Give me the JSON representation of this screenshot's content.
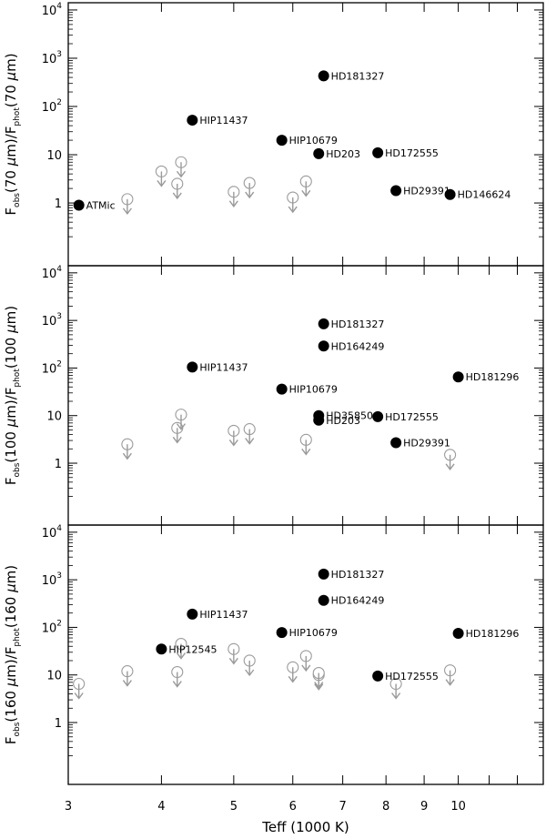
{
  "chart_data": [
    {
      "type": "scatter",
      "ylabel": {
        "pre": "F",
        "obs": "obs",
        "mid1": "(70 ",
        "mu": "μ",
        "mid2": "m)/F",
        "phot": "phot",
        "post": "(70 ",
        "mu2": "μ",
        "end": "m)"
      },
      "xlim": [
        3.0,
        13.0
      ],
      "ylim_log10": [
        -1.3,
        4.15
      ],
      "detections": [
        {
          "x": 3.1,
          "y": 0.9,
          "label": "ATMic"
        },
        {
          "x": 4.4,
          "y": 52,
          "label": "HIP11437"
        },
        {
          "x": 5.8,
          "y": 20,
          "label": "HIP10679"
        },
        {
          "x": 6.5,
          "y": 10.5,
          "label": "HD203"
        },
        {
          "x": 6.6,
          "y": 430,
          "label": "HD181327"
        },
        {
          "x": 7.8,
          "y": 11,
          "label": "HD172555"
        },
        {
          "x": 8.25,
          "y": 1.8,
          "label": "HD29391"
        },
        {
          "x": 9.75,
          "y": 1.5,
          "label": "HD146624"
        }
      ],
      "upper_limits": [
        {
          "x": 3.6,
          "y": 1.2
        },
        {
          "x": 4.0,
          "y": 4.5
        },
        {
          "x": 4.2,
          "y": 2.5
        },
        {
          "x": 4.25,
          "y": 7
        },
        {
          "x": 5.0,
          "y": 1.7
        },
        {
          "x": 5.25,
          "y": 2.6
        },
        {
          "x": 6.0,
          "y": 1.3
        },
        {
          "x": 6.25,
          "y": 2.8
        }
      ]
    },
    {
      "type": "scatter",
      "ylabel": {
        "pre": "F",
        "obs": "obs",
        "mid1": "(100 ",
        "mu": "μ",
        "mid2": "m)/F",
        "phot": "phot",
        "post": "(100 ",
        "mu2": "μ",
        "end": "m)"
      },
      "xlim": [
        3.0,
        13.0
      ],
      "ylim_log10": [
        -1.3,
        4.15
      ],
      "detections": [
        {
          "x": 4.4,
          "y": 105,
          "label": "HIP11437"
        },
        {
          "x": 5.8,
          "y": 36,
          "label": "HIP10679"
        },
        {
          "x": 6.5,
          "y": 10,
          "label": "HD35850"
        },
        {
          "x": 6.5,
          "y": 8,
          "label": "HD203"
        },
        {
          "x": 6.6,
          "y": 850,
          "label": "HD181327"
        },
        {
          "x": 6.6,
          "y": 290,
          "label": "HD164249"
        },
        {
          "x": 7.8,
          "y": 9.5,
          "label": "HD172555"
        },
        {
          "x": 8.25,
          "y": 2.7,
          "label": "HD29391"
        },
        {
          "x": 10.0,
          "y": 65,
          "label": "HD181296"
        }
      ],
      "upper_limits": [
        {
          "x": 3.6,
          "y": 2.5
        },
        {
          "x": 4.2,
          "y": 5.5
        },
        {
          "x": 4.25,
          "y": 10.5
        },
        {
          "x": 5.0,
          "y": 4.8
        },
        {
          "x": 5.25,
          "y": 5.2
        },
        {
          "x": 6.25,
          "y": 3.1
        },
        {
          "x": 9.75,
          "y": 1.5
        }
      ]
    },
    {
      "type": "scatter",
      "ylabel": {
        "pre": "F",
        "obs": "obs",
        "mid1": "(160 ",
        "mu": "μ",
        "mid2": "m)/F",
        "phot": "phot",
        "post": "(160 ",
        "mu2": "μ",
        "end": "m)"
      },
      "xlabel": "Teff (1000 K)",
      "xlim": [
        3.0,
        13.0
      ],
      "ylim_log10": [
        -1.3,
        4.15
      ],
      "xticks": [
        3,
        4,
        5,
        6,
        7,
        8,
        9,
        10
      ],
      "detections": [
        {
          "x": 4.0,
          "y": 35,
          "label": "HIP12545"
        },
        {
          "x": 4.4,
          "y": 190,
          "label": "HIP11437"
        },
        {
          "x": 5.8,
          "y": 78,
          "label": "HIP10679"
        },
        {
          "x": 6.6,
          "y": 1320,
          "label": "HD181327"
        },
        {
          "x": 6.6,
          "y": 370,
          "label": "HD164249"
        },
        {
          "x": 7.8,
          "y": 9.5,
          "label": "HD172555"
        },
        {
          "x": 10.0,
          "y": 75,
          "label": "HD181296"
        }
      ],
      "upper_limits": [
        {
          "x": 3.1,
          "y": 6.5
        },
        {
          "x": 3.6,
          "y": 12
        },
        {
          "x": 4.2,
          "y": 11.5
        },
        {
          "x": 4.25,
          "y": 45
        },
        {
          "x": 5.0,
          "y": 35
        },
        {
          "x": 5.25,
          "y": 20
        },
        {
          "x": 6.0,
          "y": 14.5
        },
        {
          "x": 6.25,
          "y": 25
        },
        {
          "x": 6.5,
          "y": 10
        },
        {
          "x": 6.5,
          "y": 11
        },
        {
          "x": 8.25,
          "y": 6.5
        },
        {
          "x": 9.75,
          "y": 12.5
        }
      ]
    }
  ],
  "yticks": [
    {
      "base": "1",
      "exp": "",
      "v": 1
    },
    {
      "base": "10",
      "exp": "",
      "v": 10
    },
    {
      "base": "10",
      "exp": "2",
      "v": 100
    },
    {
      "base": "10",
      "exp": "3",
      "v": 1000
    },
    {
      "base": "10",
      "exp": "4",
      "v": 10000
    }
  ],
  "colors": {
    "detection": "#000000",
    "limit": "#9a9a9a",
    "axis": "#000000"
  }
}
